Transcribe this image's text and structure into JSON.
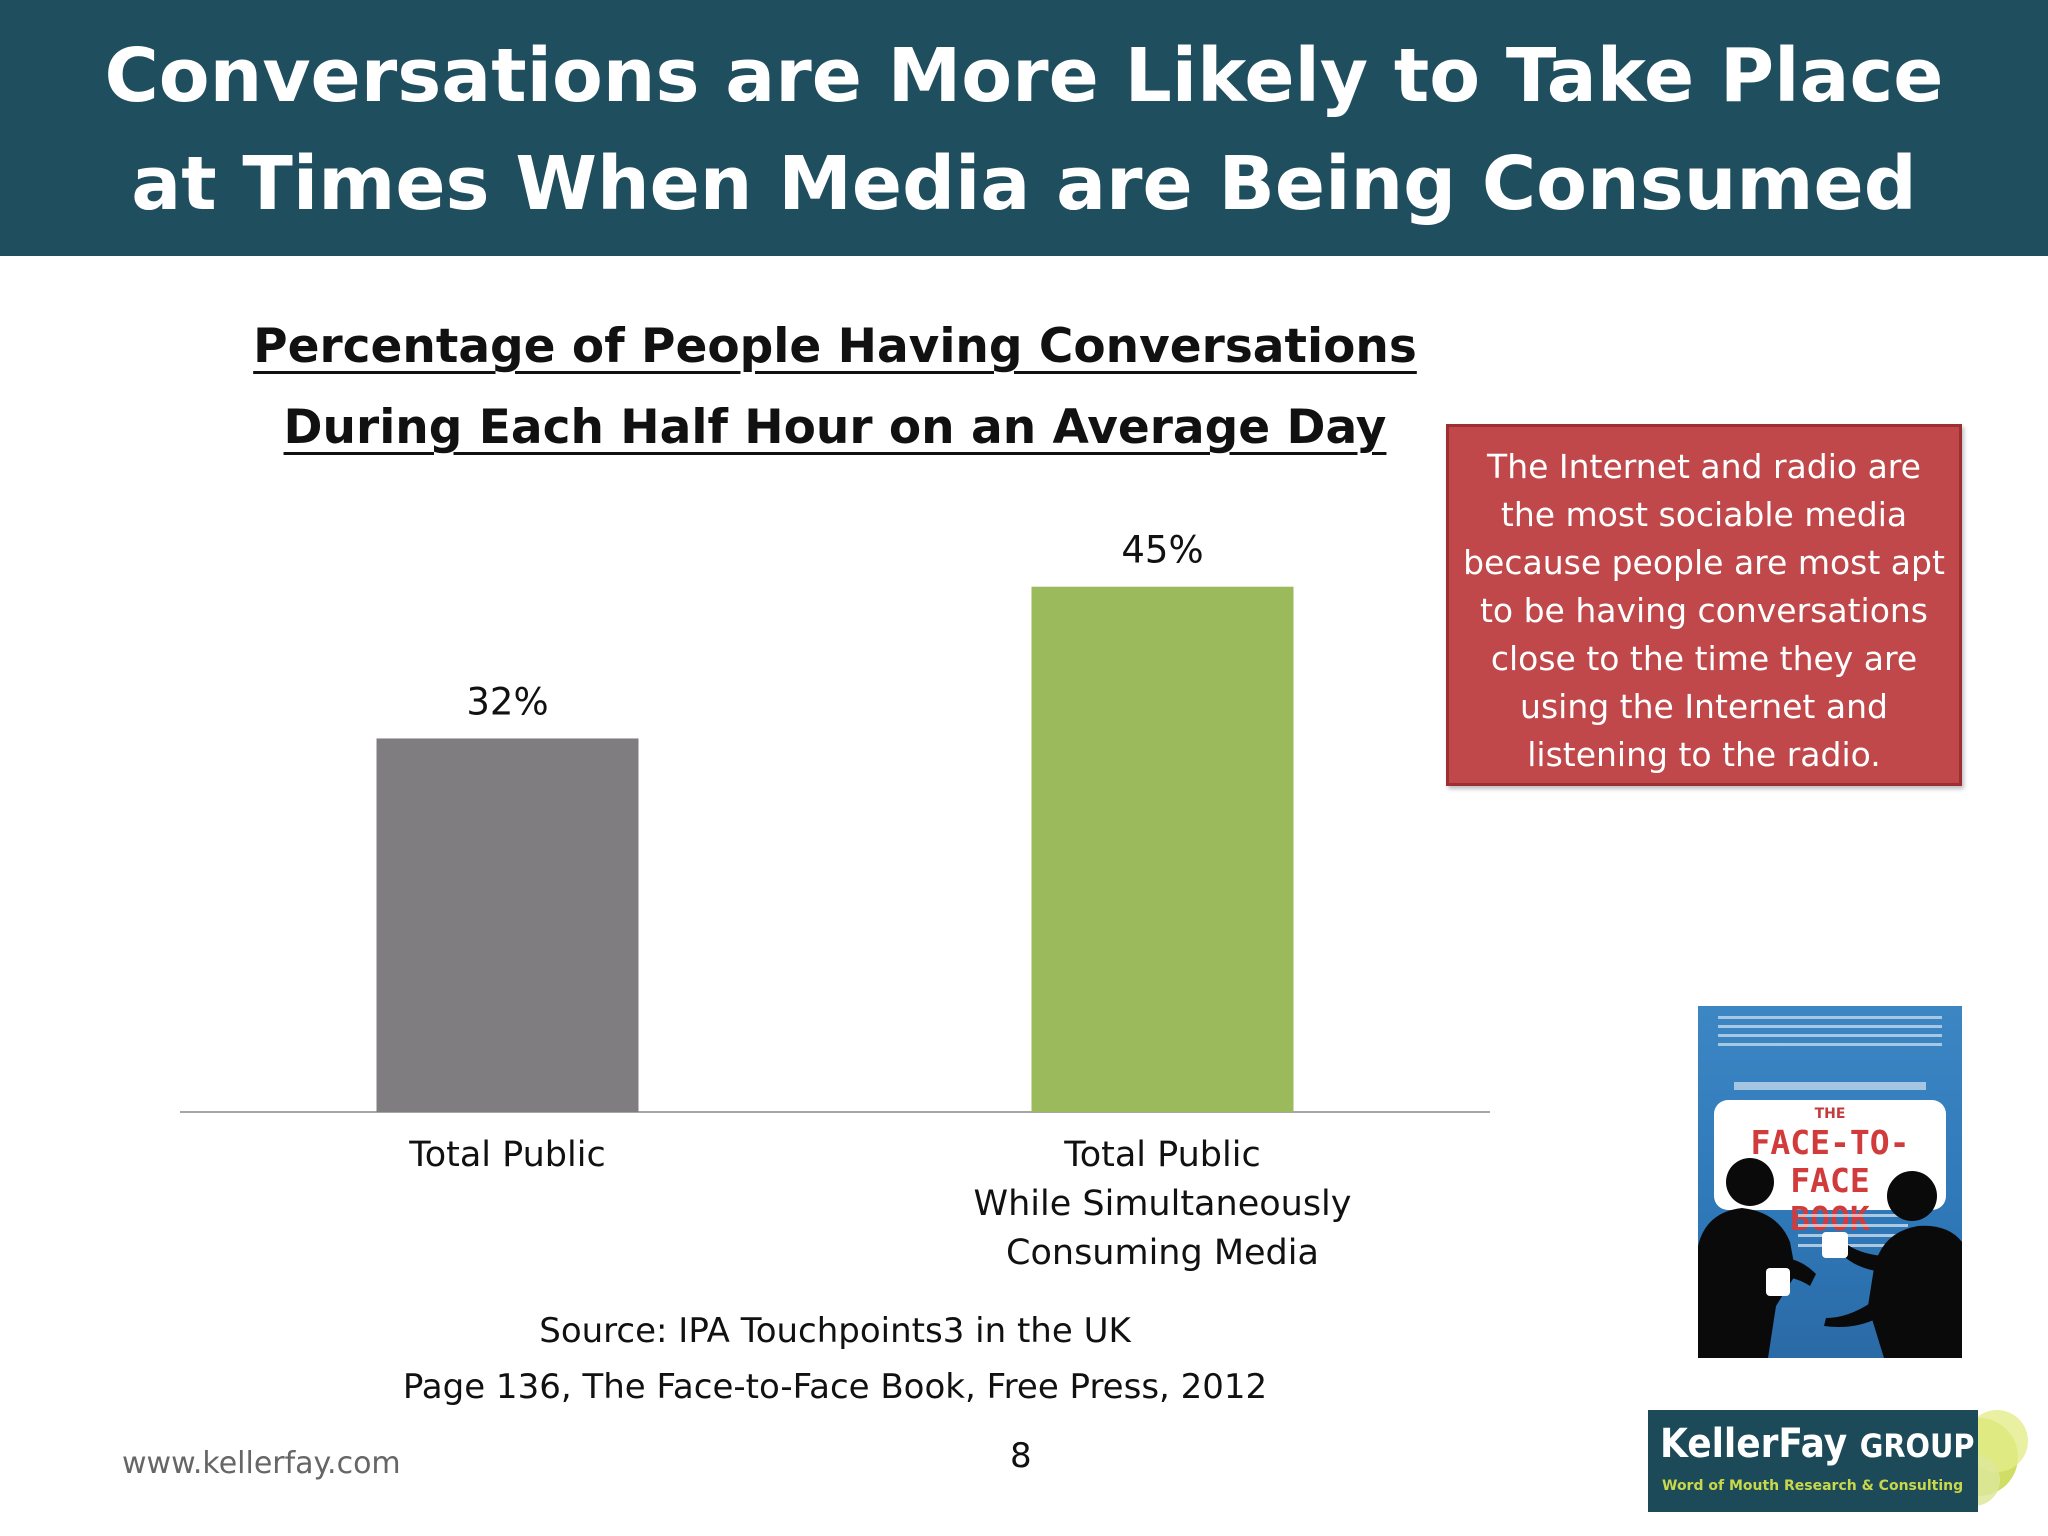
{
  "header": {
    "title_lines": [
      "Conversations are More Likely to Take Place",
      "at Times When Media are Being Consumed"
    ]
  },
  "chart_data": {
    "type": "bar",
    "title_lines": [
      "Percentage of People Having Conversations",
      "During Each Half Hour on an Average Day"
    ],
    "categories": [
      [
        "Total Public"
      ],
      [
        "Total Public",
        "While Simultaneously",
        "Consuming Media"
      ]
    ],
    "values": [
      32,
      45
    ],
    "value_labels": [
      "32%",
      "45%"
    ],
    "colors": [
      "#7f7d80",
      "#9bba5b"
    ],
    "ylim": [
      0,
      52
    ],
    "grid": false,
    "legend": "none"
  },
  "callout": {
    "text": "The Internet and radio are the most sociable media because people are most apt to be having conversations close to the time they are using the Internet and listening to the radio."
  },
  "source": {
    "lines": [
      "Source:  IPA Touchpoints3 in the UK",
      "Page 136, The Face-to-Face Book, Free Press, 2012"
    ]
  },
  "footer": {
    "url": "www.kellerfay.com",
    "page_number": "8"
  },
  "book": {
    "the": "THE",
    "title_lines": [
      "FACE-TO-FACE",
      "BOOK"
    ]
  },
  "logo": {
    "name": "KellerFay",
    "group": "GROUP",
    "tagline": "Word of Mouth Research & Consulting"
  }
}
